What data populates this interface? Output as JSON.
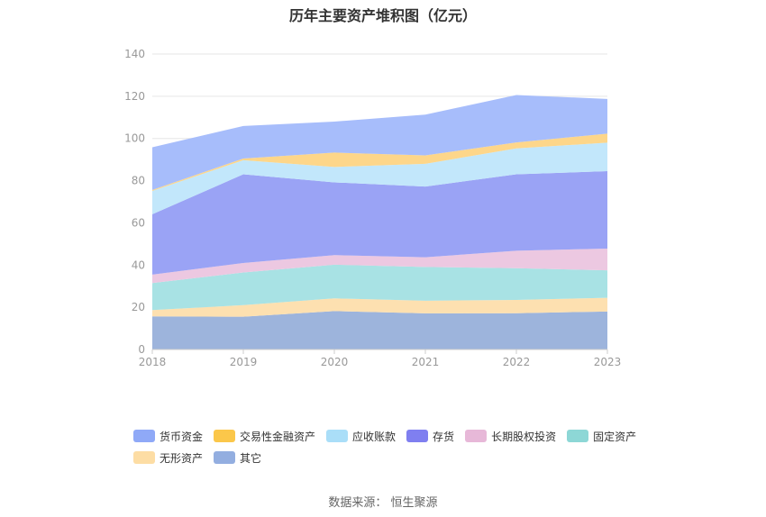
{
  "title": "历年主要资产堆积图（亿元）",
  "source": "数据来源：  恒生聚源",
  "chart_data": {
    "type": "area",
    "stacked": true,
    "title": "历年主要资产堆积图（亿元）",
    "x": [
      "2018",
      "2019",
      "2020",
      "2021",
      "2022",
      "2023"
    ],
    "ylim": [
      0,
      140
    ],
    "yticks": [
      0,
      20,
      40,
      60,
      80,
      100,
      120,
      140
    ],
    "grid": true,
    "legend_position": "bottom",
    "series": [
      {
        "name": "其它",
        "color": "#9db4dc",
        "values": [
          15.7,
          15.5,
          18.2,
          17.1,
          17.2,
          18.0
        ]
      },
      {
        "name": "无形资产",
        "color": "#fde0b0",
        "values": [
          3.0,
          5.5,
          6.0,
          6.0,
          6.3,
          6.5
        ]
      },
      {
        "name": "固定资产",
        "color": "#a8e2e4",
        "values": [
          12.8,
          15.5,
          16.0,
          16.0,
          15.0,
          13.0
        ]
      },
      {
        "name": "长期股权投资",
        "color": "#ecc8e1",
        "values": [
          4.0,
          4.5,
          4.5,
          4.6,
          8.3,
          10.3
        ]
      },
      {
        "name": "存货",
        "color": "#9aa3f5",
        "values": [
          28.6,
          42.0,
          34.5,
          33.5,
          36.2,
          36.7
        ]
      },
      {
        "name": "应收账款",
        "color": "#c2e7fb",
        "values": [
          11.0,
          6.7,
          7.3,
          10.8,
          12.3,
          13.5
        ]
      },
      {
        "name": "交易性金融资产",
        "color": "#fdd68a",
        "values": [
          0.5,
          0.8,
          6.8,
          4.0,
          2.8,
          4.3
        ]
      },
      {
        "name": "货币资金",
        "color": "#a7bdfb",
        "values": [
          20.2,
          15.4,
          14.7,
          19.3,
          22.5,
          16.4
        ]
      }
    ]
  },
  "legend": {
    "row1": [
      {
        "label": "货币资金",
        "color": "#8fa9f7"
      },
      {
        "label": "交易性金融资产",
        "color": "#fbc74a"
      },
      {
        "label": "应收账款",
        "color": "#aadef8"
      },
      {
        "label": "存货",
        "color": "#7f7ff0"
      },
      {
        "label": "长期股权投资",
        "color": "#e7b8d8"
      },
      {
        "label": "固定资产",
        "color": "#8dd7d6"
      }
    ],
    "row2": [
      {
        "label": "无形资产",
        "color": "#fddda4"
      },
      {
        "label": "其它",
        "color": "#93aee0"
      }
    ]
  }
}
